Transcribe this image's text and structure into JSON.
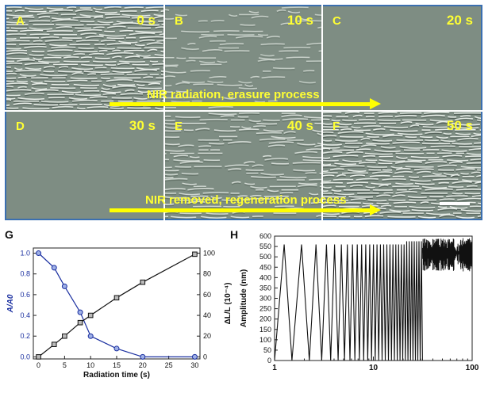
{
  "micrographs": {
    "panels": [
      {
        "letter": "A",
        "time": "0 s",
        "density": 1.0
      },
      {
        "letter": "B",
        "time": "10 s",
        "density": 0.3
      },
      {
        "letter": "C",
        "time": "20 s",
        "density": 0.0
      },
      {
        "letter": "D",
        "time": "30 s",
        "density": 0.0
      },
      {
        "letter": "E",
        "time": "40 s",
        "density": 0.6
      },
      {
        "letter": "F",
        "time": "50 s",
        "density": 1.0
      }
    ],
    "process_top": "NIR radiation, erasure process",
    "process_bottom": "NIR removed, regeneration process"
  },
  "colors": {
    "frame": "#3b6fb0",
    "label": "#ffff33",
    "arrow": "#ffff00",
    "blue_series": "#1a2fa0",
    "black_series": "#111111"
  },
  "chart_data": [
    {
      "type": "line",
      "panel_label": "G",
      "xlabel": "Radiation time (s)",
      "x_ticks": [
        "0",
        "5",
        "10",
        "15",
        "20",
        "25",
        "30"
      ],
      "xlim": [
        -1,
        31
      ],
      "y_left": {
        "label": "A/A0",
        "ticks": [
          "0.0",
          "0.2",
          "0.4",
          "0.6",
          "0.8",
          "1.0"
        ],
        "lim": [
          -0.02,
          1.05
        ]
      },
      "y_right": {
        "label": "ΔL/L (10⁻⁴)",
        "ticks": [
          "0",
          "20",
          "40",
          "60",
          "80",
          "100"
        ],
        "lim": [
          -2,
          105
        ]
      },
      "series": [
        {
          "axis": "left",
          "color": "#1a2fa0",
          "marker": "circle",
          "x": [
            0,
            3,
            5,
            8,
            10,
            15,
            20,
            30
          ],
          "y": [
            1.0,
            0.86,
            0.68,
            0.43,
            0.2,
            0.08,
            0.0,
            0.0
          ]
        },
        {
          "axis": "right",
          "color": "#111111",
          "marker": "square",
          "x": [
            0,
            3,
            5,
            8,
            10,
            15,
            20,
            30
          ],
          "y": [
            0,
            12,
            20,
            33,
            40,
            57,
            72,
            99
          ]
        }
      ]
    },
    {
      "type": "line",
      "panel_label": "H",
      "ylabel": "Amplitude (nm)",
      "x_scale": "log",
      "x_ticks": [
        "1",
        "10",
        "100"
      ],
      "xlim": [
        1,
        100
      ],
      "y_ticks": [
        "0",
        "50",
        "100",
        "150",
        "200",
        "250",
        "300",
        "350",
        "400",
        "450",
        "500",
        "550",
        "600"
      ],
      "ylim": [
        0,
        600
      ],
      "peak_amplitude": 560,
      "plateau_amplitude": [
        520,
        590
      ],
      "series": [
        {
          "color": "#111111"
        }
      ]
    }
  ]
}
